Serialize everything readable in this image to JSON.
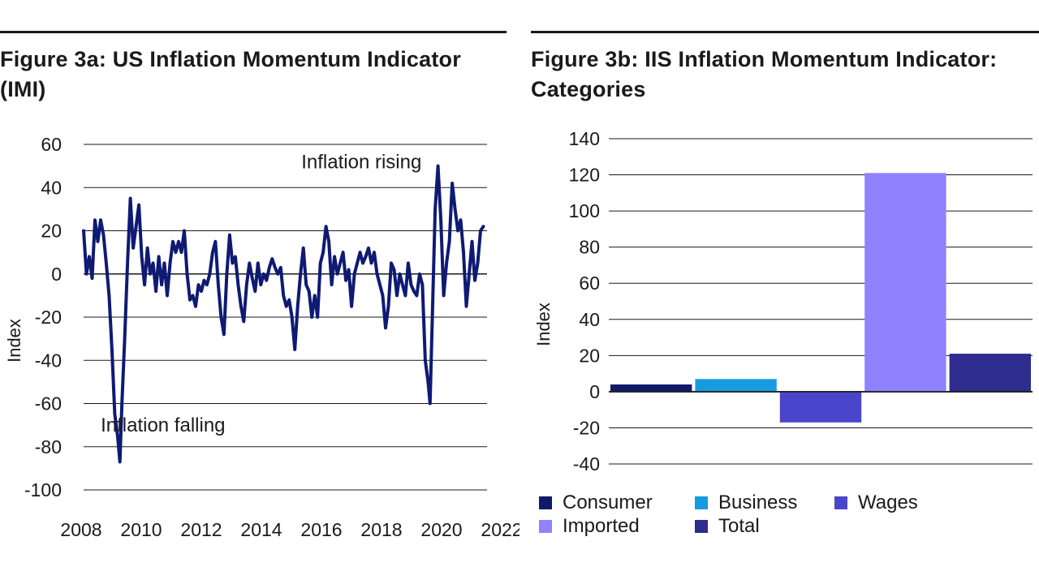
{
  "chart_data": [
    {
      "type": "line",
      "title": "Figure 3a: US Inflation Momentum Indicator (IMI)",
      "ylabel": "Index",
      "xlabel": "",
      "ylim": [
        -100,
        60
      ],
      "xlim": [
        2008,
        2022.2
      ],
      "yticks": [
        60,
        40,
        20,
        0,
        -20,
        -40,
        -60,
        -80,
        -100
      ],
      "xticks": [
        2008,
        2010,
        2012,
        2014,
        2016,
        2018,
        2020,
        2022
      ],
      "annotations": [
        {
          "text": "Inflation rising",
          "x": 2017.8,
          "y": 49
        },
        {
          "text": "Inflation falling",
          "x": 2010.8,
          "y": -73
        }
      ],
      "series": [
        {
          "name": "IMI",
          "color": "#0e1a73",
          "points": [
            [
              2008.0,
              20
            ],
            [
              2008.1,
              0
            ],
            [
              2008.2,
              8
            ],
            [
              2008.3,
              -2
            ],
            [
              2008.4,
              25
            ],
            [
              2008.5,
              15
            ],
            [
              2008.6,
              25
            ],
            [
              2008.7,
              18
            ],
            [
              2008.8,
              5
            ],
            [
              2008.9,
              -10
            ],
            [
              2009.0,
              -35
            ],
            [
              2009.1,
              -65
            ],
            [
              2009.2,
              -75
            ],
            [
              2009.28,
              -87
            ],
            [
              2009.35,
              -60
            ],
            [
              2009.45,
              -30
            ],
            [
              2009.55,
              5
            ],
            [
              2009.65,
              35
            ],
            [
              2009.75,
              12
            ],
            [
              2009.85,
              22
            ],
            [
              2009.95,
              32
            ],
            [
              2010.05,
              8
            ],
            [
              2010.15,
              -5
            ],
            [
              2010.25,
              12
            ],
            [
              2010.35,
              0
            ],
            [
              2010.45,
              5
            ],
            [
              2010.55,
              -8
            ],
            [
              2010.65,
              8
            ],
            [
              2010.75,
              -5
            ],
            [
              2010.85,
              5
            ],
            [
              2010.95,
              -10
            ],
            [
              2011.05,
              5
            ],
            [
              2011.15,
              15
            ],
            [
              2011.25,
              10
            ],
            [
              2011.35,
              15
            ],
            [
              2011.45,
              10
            ],
            [
              2011.55,
              20
            ],
            [
              2011.65,
              0
            ],
            [
              2011.75,
              -12
            ],
            [
              2011.85,
              -10
            ],
            [
              2011.95,
              -15
            ],
            [
              2012.05,
              -5
            ],
            [
              2012.15,
              -8
            ],
            [
              2012.25,
              -3
            ],
            [
              2012.35,
              -5
            ],
            [
              2012.45,
              0
            ],
            [
              2012.55,
              10
            ],
            [
              2012.65,
              15
            ],
            [
              2012.75,
              -5
            ],
            [
              2012.85,
              -20
            ],
            [
              2012.95,
              -28
            ],
            [
              2013.05,
              0
            ],
            [
              2013.15,
              18
            ],
            [
              2013.25,
              5
            ],
            [
              2013.35,
              8
            ],
            [
              2013.45,
              -5
            ],
            [
              2013.55,
              -15
            ],
            [
              2013.65,
              -22
            ],
            [
              2013.75,
              -5
            ],
            [
              2013.85,
              5
            ],
            [
              2013.95,
              -2
            ],
            [
              2014.05,
              -8
            ],
            [
              2014.15,
              5
            ],
            [
              2014.25,
              -5
            ],
            [
              2014.35,
              0
            ],
            [
              2014.45,
              -3
            ],
            [
              2014.55,
              3
            ],
            [
              2014.65,
              7
            ],
            [
              2014.75,
              3
            ],
            [
              2014.85,
              0
            ],
            [
              2014.95,
              3
            ],
            [
              2015.05,
              -10
            ],
            [
              2015.15,
              -15
            ],
            [
              2015.25,
              -12
            ],
            [
              2015.35,
              -20
            ],
            [
              2015.45,
              -35
            ],
            [
              2015.55,
              -15
            ],
            [
              2015.65,
              0
            ],
            [
              2015.75,
              12
            ],
            [
              2015.85,
              -5
            ],
            [
              2015.95,
              -8
            ],
            [
              2016.05,
              -20
            ],
            [
              2016.15,
              -10
            ],
            [
              2016.25,
              -20
            ],
            [
              2016.35,
              5
            ],
            [
              2016.45,
              10
            ],
            [
              2016.55,
              22
            ],
            [
              2016.65,
              15
            ],
            [
              2016.75,
              -5
            ],
            [
              2016.85,
              8
            ],
            [
              2016.95,
              0
            ],
            [
              2017.05,
              5
            ],
            [
              2017.15,
              10
            ],
            [
              2017.25,
              -3
            ],
            [
              2017.35,
              2
            ],
            [
              2017.45,
              -15
            ],
            [
              2017.55,
              0
            ],
            [
              2017.65,
              5
            ],
            [
              2017.75,
              10
            ],
            [
              2017.85,
              5
            ],
            [
              2017.95,
              8
            ],
            [
              2018.05,
              12
            ],
            [
              2018.15,
              5
            ],
            [
              2018.25,
              10
            ],
            [
              2018.35,
              0
            ],
            [
              2018.45,
              -5
            ],
            [
              2018.55,
              -10
            ],
            [
              2018.65,
              -25
            ],
            [
              2018.75,
              -15
            ],
            [
              2018.85,
              5
            ],
            [
              2018.95,
              2
            ],
            [
              2019.05,
              -10
            ],
            [
              2019.15,
              0
            ],
            [
              2019.25,
              -5
            ],
            [
              2019.35,
              -10
            ],
            [
              2019.45,
              5
            ],
            [
              2019.55,
              -5
            ],
            [
              2019.65,
              -8
            ],
            [
              2019.75,
              -10
            ],
            [
              2019.85,
              0
            ],
            [
              2019.95,
              -5
            ],
            [
              2020.05,
              -40
            ],
            [
              2020.15,
              -50
            ],
            [
              2020.22,
              -60
            ],
            [
              2020.3,
              -20
            ],
            [
              2020.4,
              30
            ],
            [
              2020.5,
              50
            ],
            [
              2020.6,
              25
            ],
            [
              2020.7,
              -10
            ],
            [
              2020.8,
              5
            ],
            [
              2020.9,
              15
            ],
            [
              2021.0,
              42
            ],
            [
              2021.1,
              30
            ],
            [
              2021.2,
              20
            ],
            [
              2021.3,
              25
            ],
            [
              2021.4,
              10
            ],
            [
              2021.5,
              -15
            ],
            [
              2021.6,
              0
            ],
            [
              2021.7,
              15
            ],
            [
              2021.8,
              -3
            ],
            [
              2021.9,
              5
            ],
            [
              2022.0,
              20
            ],
            [
              2022.1,
              22
            ]
          ]
        }
      ]
    },
    {
      "type": "bar",
      "title": "Figure 3b: IIS Inflation Momentum Indicator: Categories",
      "ylabel": "Index",
      "xlabel": "",
      "ylim": [
        -40,
        140
      ],
      "yticks": [
        140,
        120,
        100,
        80,
        60,
        40,
        20,
        0,
        -20,
        -40
      ],
      "categories": [
        "Consumer",
        "Business",
        "Wages",
        "Imported",
        "Total"
      ],
      "values": [
        4,
        7,
        -17,
        121,
        21
      ],
      "colors": [
        "#101a6b",
        "#179be0",
        "#4b45cc",
        "#8f82ff",
        "#2e2c8f"
      ]
    }
  ],
  "legend": {
    "items": [
      {
        "label": "Consumer",
        "color": "#101a6b"
      },
      {
        "label": "Business",
        "color": "#179be0"
      },
      {
        "label": "Wages",
        "color": "#4b45cc"
      },
      {
        "label": "Imported",
        "color": "#8f82ff"
      },
      {
        "label": "Total",
        "color": "#2e2c8f"
      }
    ]
  }
}
